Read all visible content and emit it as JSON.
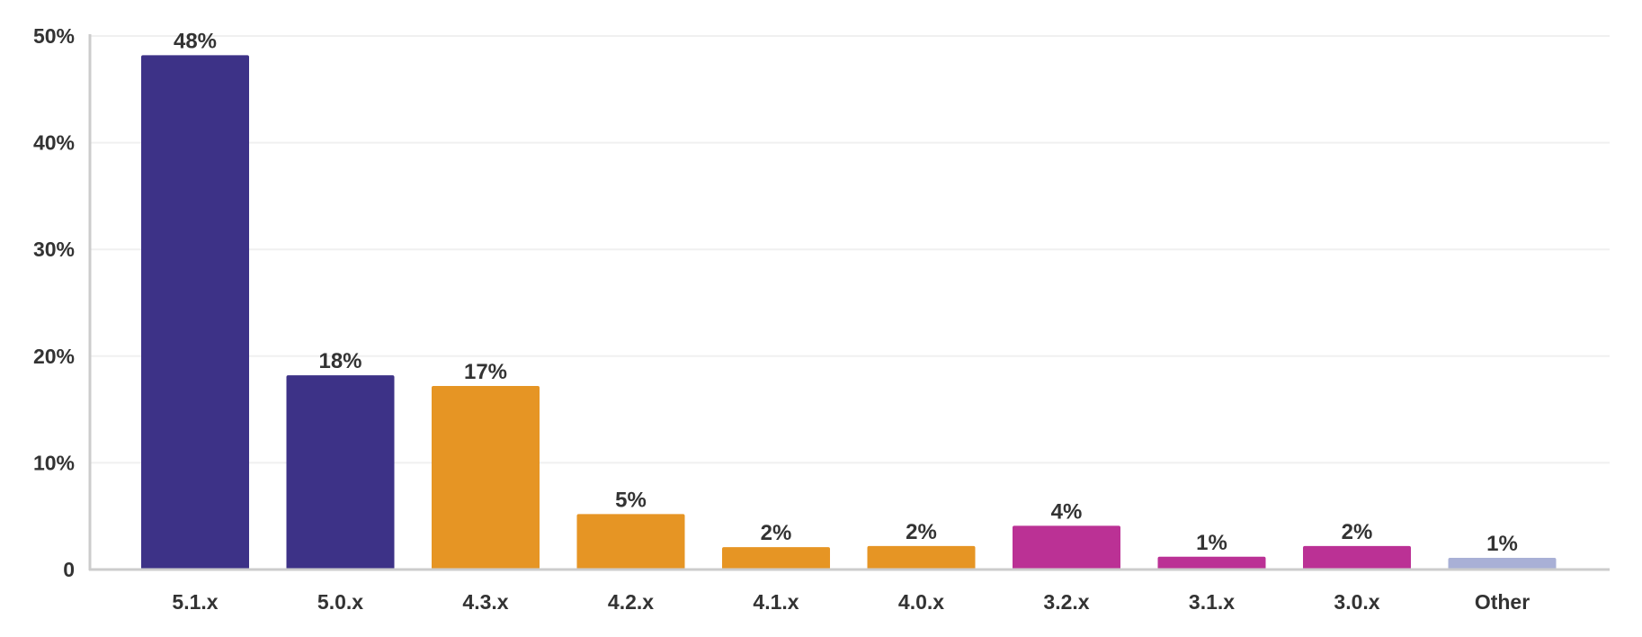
{
  "chart_data": {
    "type": "bar",
    "categories": [
      "5.1.x",
      "5.0.x",
      "4.3.x",
      "4.2.x",
      "4.1.x",
      "4.0.x",
      "3.2.x",
      "3.1.x",
      "3.0.x",
      "Other"
    ],
    "values": [
      48.2,
      18.2,
      17.2,
      5.2,
      2.1,
      2.2,
      4.1,
      1.2,
      2.2,
      1.1
    ],
    "data_labels": [
      "48%",
      "18%",
      "17%",
      "5%",
      "2%",
      "2%",
      "4%",
      "1%",
      "2%",
      "1%"
    ],
    "bar_colors": [
      "#3d3287",
      "#3d3287",
      "#e69524",
      "#e69524",
      "#e69524",
      "#e69524",
      "#bb3195",
      "#bb3195",
      "#bb3195",
      "#a9b0d6"
    ],
    "y_ticks": [
      0,
      10,
      20,
      30,
      40,
      50
    ],
    "y_tick_labels": [
      "0",
      "10%",
      "20%",
      "30%",
      "40%",
      "50%"
    ],
    "ylim": [
      0,
      50
    ],
    "title": "",
    "xlabel": "",
    "ylabel": "",
    "grid": true,
    "legend": "none",
    "colors": {
      "grid": "#f0f0f0",
      "axis": "#cccccc",
      "text": "#333333"
    }
  }
}
